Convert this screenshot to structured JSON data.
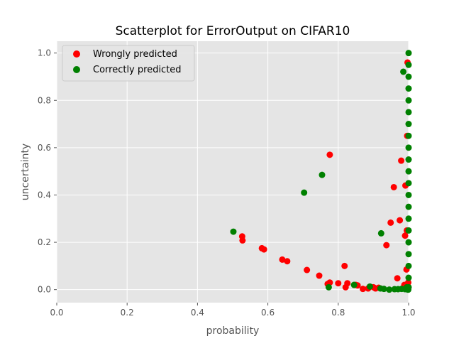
{
  "chart_data": {
    "type": "scatter",
    "title": "Scatterplot for ErrorOutput on CIFAR10",
    "xlabel": "probability",
    "ylabel": "uncertainty",
    "xlim": [
      0.0,
      1.0
    ],
    "ylim": [
      -0.055,
      1.05
    ],
    "xticks": [
      "0.0",
      "0.2",
      "0.4",
      "0.6",
      "0.8",
      "1.0"
    ],
    "yticks": [
      "0.0",
      "0.2",
      "0.4",
      "0.6",
      "0.8",
      "1.0"
    ],
    "grid": true,
    "legend_position": "top-left",
    "series": [
      {
        "name": "Wrongly predicted",
        "color": "#ff0000",
        "points": [
          [
            0.527,
            0.225
          ],
          [
            0.528,
            0.208
          ],
          [
            0.583,
            0.175
          ],
          [
            0.589,
            0.17
          ],
          [
            0.641,
            0.127
          ],
          [
            0.655,
            0.12
          ],
          [
            0.711,
            0.083
          ],
          [
            0.746,
            0.059
          ],
          [
            0.77,
            0.024
          ],
          [
            0.776,
            0.03
          ],
          [
            0.776,
            0.57
          ],
          [
            0.8,
            0.027
          ],
          [
            0.818,
            0.1
          ],
          [
            0.821,
            0.01
          ],
          [
            0.826,
            0.027
          ],
          [
            0.85,
            0.02
          ],
          [
            0.855,
            0.018
          ],
          [
            0.87,
            0.003
          ],
          [
            0.885,
            0.005
          ],
          [
            0.9,
            0.01
          ],
          [
            0.906,
            0.005
          ],
          [
            0.915,
            0.008
          ],
          [
            0.937,
            0.188
          ],
          [
            0.949,
            0.283
          ],
          [
            0.958,
            0.433
          ],
          [
            0.968,
            0.048
          ],
          [
            0.975,
            0.293
          ],
          [
            0.979,
            0.545
          ],
          [
            0.985,
            0.008
          ],
          [
            0.988,
            0.02
          ],
          [
            0.99,
            0.228
          ],
          [
            0.991,
            0.44
          ],
          [
            0.994,
            0.085
          ],
          [
            0.995,
            0.25
          ],
          [
            0.996,
            0.65
          ],
          [
            0.997,
            0.96
          ],
          [
            0.998,
            0.005
          ],
          [
            0.999,
            0.03
          ]
        ]
      },
      {
        "name": "Correctly predicted",
        "color": "#008000",
        "points": [
          [
            0.502,
            0.245
          ],
          [
            0.703,
            0.41
          ],
          [
            0.754,
            0.485
          ],
          [
            0.773,
            0.01
          ],
          [
            0.845,
            0.02
          ],
          [
            0.89,
            0.013
          ],
          [
            0.92,
            0.005
          ],
          [
            0.922,
            0.238
          ],
          [
            0.93,
            0.003
          ],
          [
            0.945,
            0.0
          ],
          [
            0.96,
            0.002
          ],
          [
            0.97,
            0.002
          ],
          [
            0.98,
            0.003
          ],
          [
            0.985,
            0.921
          ],
          [
            0.99,
            0.002
          ],
          [
            0.995,
            0.01
          ],
          [
            0.998,
            0.0
          ],
          [
            0.999,
            0.0
          ],
          [
            1.0,
            1.0
          ],
          [
            1.0,
            0.95
          ],
          [
            1.0,
            0.9
          ],
          [
            1.0,
            0.85
          ],
          [
            1.0,
            0.8
          ],
          [
            1.0,
            0.75
          ],
          [
            1.0,
            0.7
          ],
          [
            1.0,
            0.65
          ],
          [
            1.0,
            0.6
          ],
          [
            1.0,
            0.55
          ],
          [
            1.0,
            0.5
          ],
          [
            1.0,
            0.45
          ],
          [
            1.0,
            0.4
          ],
          [
            1.0,
            0.35
          ],
          [
            1.0,
            0.3
          ],
          [
            1.0,
            0.25
          ],
          [
            1.0,
            0.2
          ],
          [
            1.0,
            0.15
          ],
          [
            1.0,
            0.1
          ],
          [
            1.0,
            0.05
          ],
          [
            1.0,
            0.01
          ]
        ]
      }
    ]
  }
}
